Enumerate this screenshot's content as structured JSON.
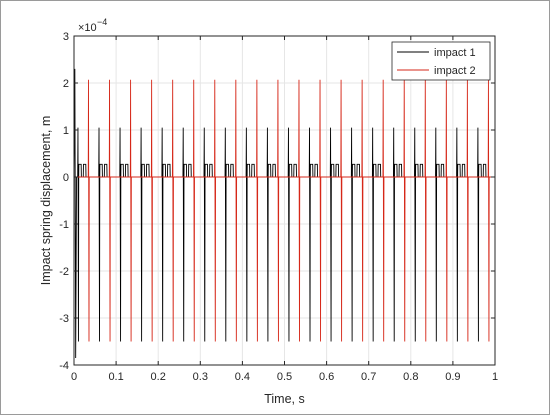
{
  "chart_data": {
    "type": "line",
    "xlabel": "Time, s",
    "ylabel": "Impact spring displacement, m",
    "xlim": [
      0,
      1
    ],
    "ylim": [
      -4,
      3
    ],
    "y_exponent_label": "×10",
    "y_exponent_power": "−4",
    "x_ticks": [
      0,
      0.1,
      0.2,
      0.3,
      0.4,
      0.5,
      0.6,
      0.7,
      0.8,
      0.9,
      1
    ],
    "x_tick_labels": [
      "0",
      "0.1",
      "0.2",
      "0.3",
      "0.4",
      "0.5",
      "0.6",
      "0.7",
      "0.8",
      "0.9",
      "1"
    ],
    "y_ticks": [
      -4,
      -3,
      -2,
      -1,
      0,
      1,
      2,
      3
    ],
    "y_tick_labels": [
      "-4",
      "-3",
      "-2",
      "-1",
      "0",
      "1",
      "2",
      "3"
    ],
    "grid": true,
    "legend_position": "top-right",
    "series": [
      {
        "name": "impact 1",
        "color": "#000000",
        "pulse_peak": 1.05,
        "pulse_trough": -3.5,
        "step_level": 0.27,
        "start_spike_peak": 2.3,
        "start_spike_trough": -3.85,
        "pulse_times": [
          0.01,
          0.06,
          0.11,
          0.16,
          0.21,
          0.26,
          0.31,
          0.36,
          0.41,
          0.46,
          0.51,
          0.56,
          0.61,
          0.66,
          0.71,
          0.76,
          0.81,
          0.86,
          0.91,
          0.96
        ]
      },
      {
        "name": "impact 2",
        "color": "#d62718",
        "pulse_peak": 2.07,
        "pulse_trough": -3.5,
        "pulse_times": [
          0.035,
          0.085,
          0.135,
          0.185,
          0.235,
          0.285,
          0.335,
          0.385,
          0.435,
          0.485,
          0.535,
          0.585,
          0.635,
          0.685,
          0.735,
          0.785,
          0.835,
          0.885,
          0.935,
          0.985
        ]
      }
    ]
  }
}
